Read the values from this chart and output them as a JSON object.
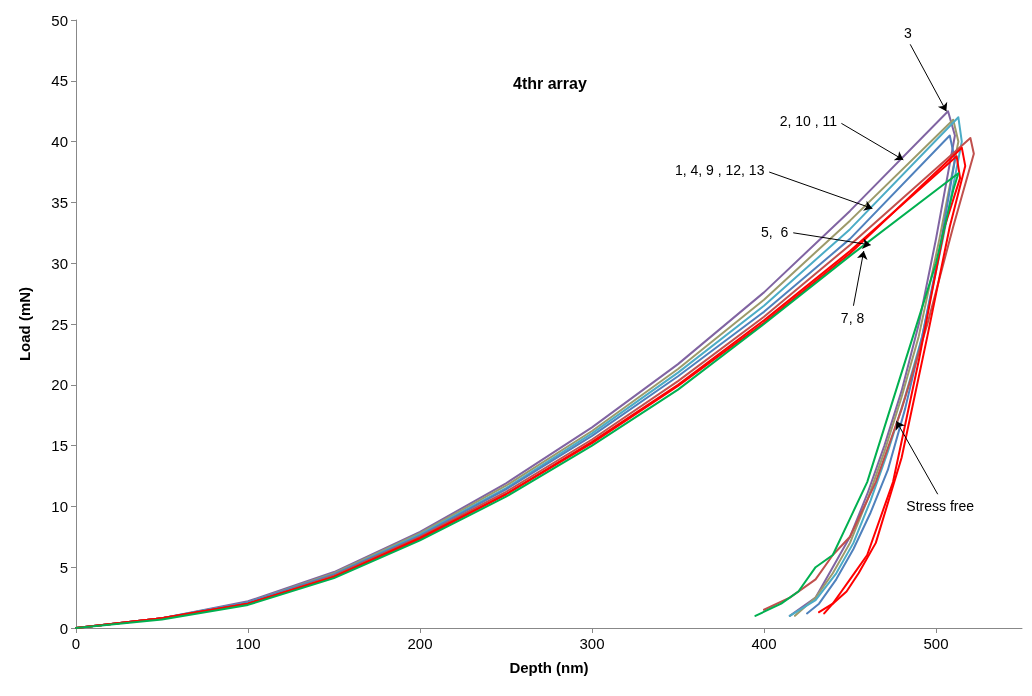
{
  "chart_data": {
    "type": "line",
    "title": "4thr array",
    "xlabel": "Depth (nm)",
    "ylabel": "Load (mN)",
    "xlim": [
      0,
      550
    ],
    "xticks": [
      0,
      100,
      200,
      300,
      400,
      500
    ],
    "ylim": [
      0,
      50
    ],
    "yticks": [
      0,
      5,
      10,
      15,
      20,
      25,
      30,
      35,
      40,
      45,
      50
    ],
    "grid": false,
    "marker": "none",
    "line_style": "solid",
    "series": [
      {
        "color": "#8064a2",
        "x": [
          0,
          50,
          100,
          150,
          200,
          250,
          300,
          350,
          400,
          450,
          507,
          511,
          500,
          490,
          480,
          470,
          460,
          450,
          440,
          430,
          415
        ],
        "values": [
          0,
          0.8,
          2.2,
          4.6,
          7.9,
          11.9,
          16.5,
          21.7,
          27.6,
          34.3,
          42.5,
          40.5,
          32,
          25,
          19.5,
          15,
          11,
          7.5,
          5,
          2.5,
          1
        ]
      },
      {
        "color": "#9c9a6a",
        "x": [
          0,
          50,
          100,
          150,
          200,
          250,
          300,
          350,
          400,
          450,
          510,
          513,
          502,
          490,
          480,
          470,
          460,
          450,
          440,
          430,
          418
        ],
        "values": [
          0,
          0.8,
          2.1,
          4.5,
          7.8,
          11.7,
          16.2,
          21.3,
          27,
          33.5,
          41.8,
          40,
          32,
          24,
          19,
          14.5,
          10.5,
          7,
          4.5,
          2.5,
          1
        ]
      },
      {
        "color": "#4bacc6",
        "x": [
          0,
          50,
          100,
          150,
          200,
          250,
          300,
          350,
          400,
          450,
          513,
          515,
          504,
          492,
          482,
          472,
          462,
          452,
          442,
          430,
          415
        ],
        "values": [
          0,
          0.8,
          2.1,
          4.4,
          7.7,
          11.5,
          16,
          21,
          26.5,
          32.8,
          42,
          40,
          32,
          24,
          19,
          14.5,
          10.5,
          7,
          4.5,
          2.3,
          1
        ]
      },
      {
        "color": "#4f81bd",
        "x": [
          0,
          50,
          100,
          150,
          200,
          250,
          300,
          350,
          400,
          450,
          508,
          511,
          502,
          492,
          482,
          472,
          462,
          452,
          442,
          432,
          425
        ],
        "values": [
          0,
          0.8,
          2.1,
          4.4,
          7.6,
          11.4,
          15.8,
          20.7,
          26,
          32,
          40.5,
          38.5,
          31,
          24,
          18,
          13,
          9.5,
          6.5,
          4,
          2,
          1.2
        ]
      },
      {
        "color": "#c0504d",
        "x": [
          0,
          50,
          100,
          150,
          200,
          250,
          300,
          350,
          400,
          450,
          520,
          522,
          510,
          495,
          480,
          465,
          450,
          440,
          430,
          415,
          400
        ],
        "values": [
          0,
          0.8,
          2,
          4.3,
          7.5,
          11.2,
          15.5,
          20.3,
          25.6,
          31.5,
          40.3,
          39,
          33,
          25,
          18,
          12,
          7.5,
          6,
          4,
          2.5,
          1.5
        ]
      },
      {
        "color": "#ff0000",
        "x": [
          0,
          50,
          100,
          150,
          200,
          250,
          300,
          350,
          400,
          450,
          512,
          514,
          505,
          490,
          475,
          460,
          450,
          445,
          440,
          432
        ],
        "values": [
          0,
          0.8,
          2,
          4.2,
          7.4,
          11,
          15.3,
          20,
          25.3,
          31,
          38.8,
          37,
          33,
          22,
          12,
          6,
          4,
          3,
          2,
          1.3
        ]
      },
      {
        "color": "#ff0000",
        "x": [
          0,
          50,
          100,
          150,
          200,
          250,
          300,
          350,
          400,
          450,
          515,
          517,
          508,
          495,
          480,
          465,
          455,
          448,
          440,
          435
        ],
        "values": [
          0,
          0.8,
          2,
          4.2,
          7.3,
          11,
          15.2,
          19.9,
          25.1,
          30.8,
          39.5,
          38,
          33,
          24,
          14,
          7,
          4.5,
          3,
          2,
          1.2
        ]
      },
      {
        "color": "#00b050",
        "x": [
          0,
          50,
          100,
          150,
          200,
          250,
          300,
          350,
          400,
          450,
          513,
          510,
          500,
          490,
          480,
          470,
          460,
          450,
          440,
          430,
          420,
          410,
          395
        ],
        "values": [
          0,
          0.7,
          1.9,
          4.1,
          7.2,
          10.8,
          15,
          19.6,
          25,
          30.6,
          37.4,
          36,
          30,
          25.5,
          21,
          16.5,
          12,
          9,
          6,
          5,
          3,
          2,
          1
        ]
      }
    ],
    "annotations": [
      {
        "text": "3",
        "x": 506,
        "y": 42.5
      },
      {
        "text": "2, 10 , 11",
        "x": 481,
        "y": 38.5
      },
      {
        "text": "1, 4, 9 , 12, 13",
        "x": 463,
        "y": 34.5
      },
      {
        "text": "5,  6",
        "x": 462,
        "y": 31.5
      },
      {
        "text": "7, 8",
        "x": 458,
        "y": 31
      },
      {
        "text": "Stress free",
        "x": 477,
        "y": 17
      }
    ]
  }
}
